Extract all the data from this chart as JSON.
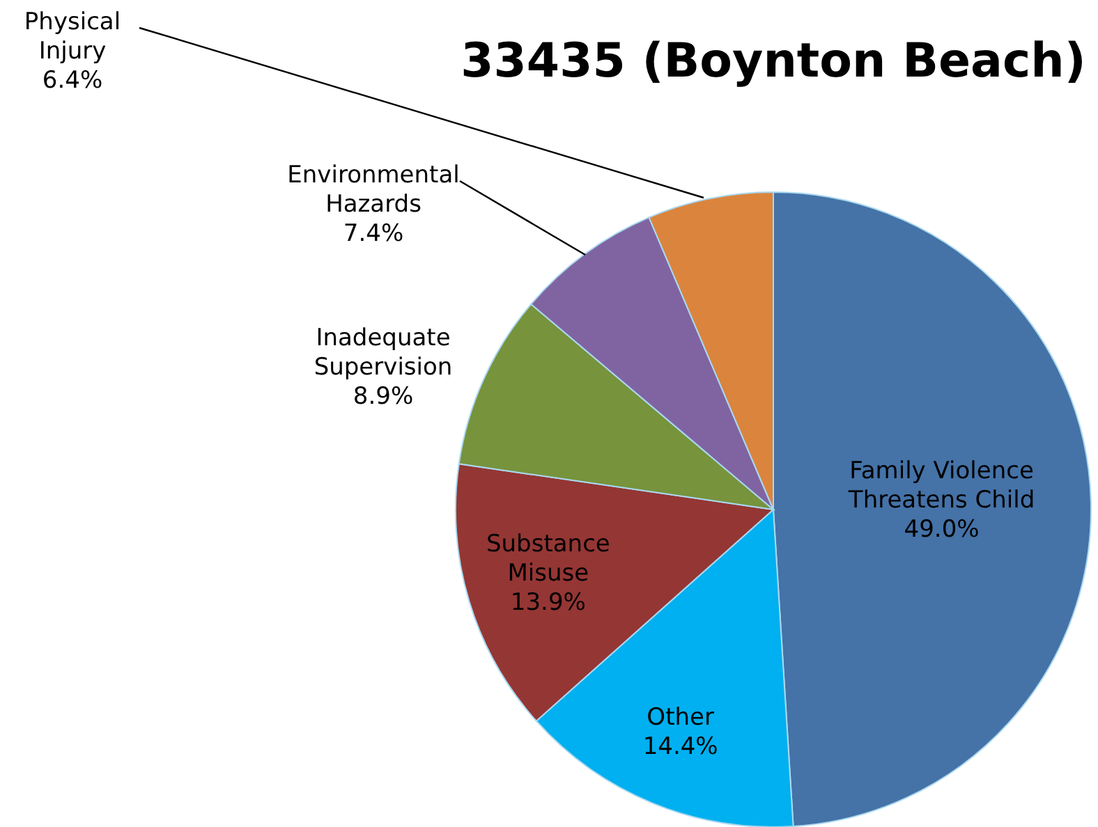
{
  "chart_data": {
    "type": "pie",
    "title": "33435 (Boynton Beach)",
    "categories": [
      "Family Violence Threatens Child",
      "Other",
      "Substance Misuse",
      "Inadequate Supervision",
      "Environmental Hazards",
      "Physical Injury"
    ],
    "values": [
      49.0,
      14.4,
      13.9,
      8.9,
      7.4,
      6.4
    ],
    "colors": [
      "#4572a7",
      "#00b0f0",
      "#943634",
      "#77933c",
      "#8064a2",
      "#db843d"
    ],
    "value_labels": [
      "49.0%",
      "14.4%",
      "13.9%",
      "8.9%",
      "7.4%",
      "6.4%"
    ]
  }
}
